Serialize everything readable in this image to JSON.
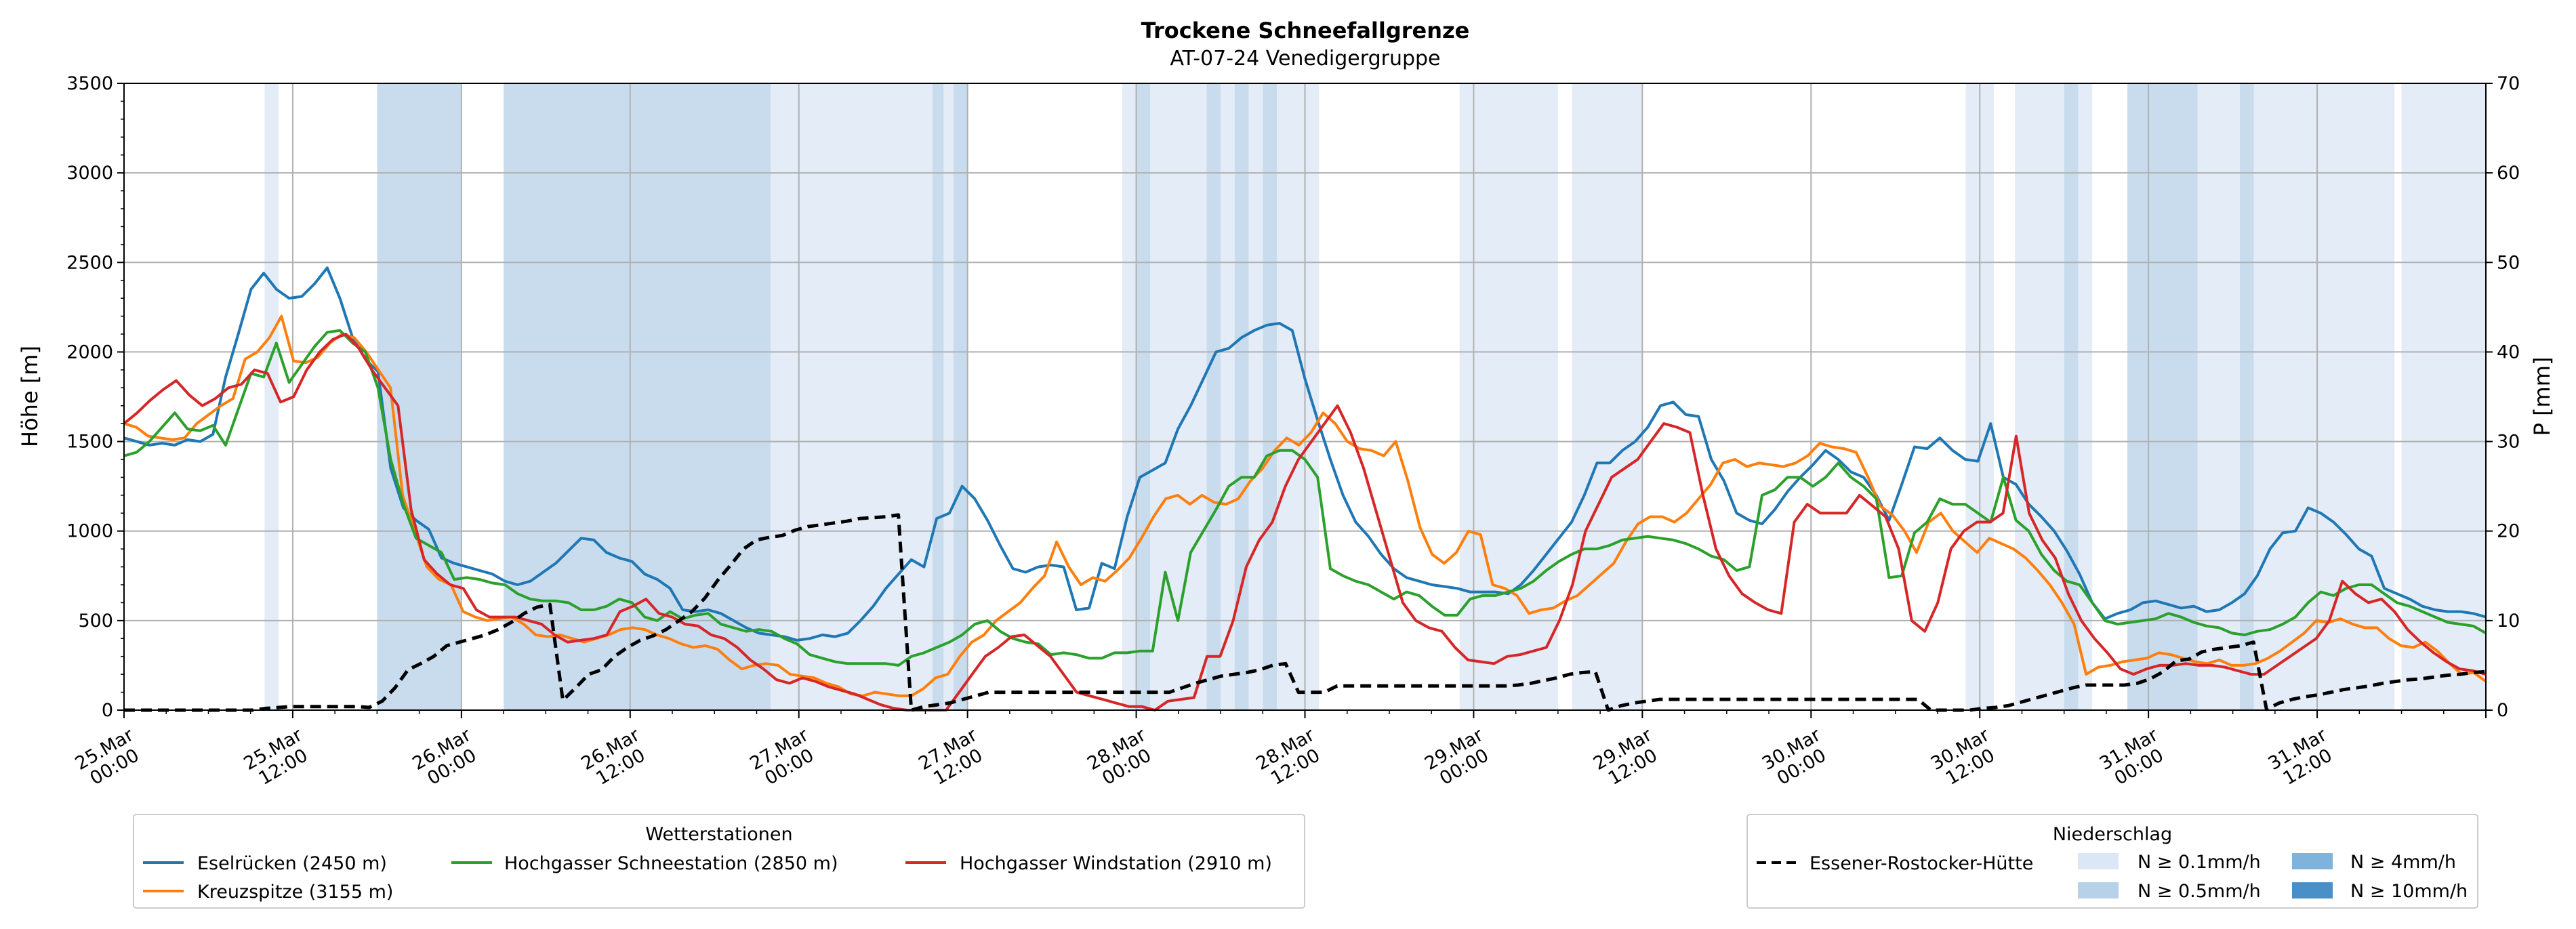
{
  "chart_data": {
    "type": "line",
    "title": "Trockene Schneefallgrenze",
    "subtitle": "AT-07-24 Venedigergruppe",
    "ylabel_left": "Höhe [m]",
    "ylabel_right": "P [mm]",
    "ylim_left": [
      0,
      3500
    ],
    "ylim_right": [
      0,
      70
    ],
    "yticks_left": [
      "0",
      "500",
      "1000",
      "1500",
      "2000",
      "2500",
      "3000",
      "3500"
    ],
    "yticks_right": [
      "0",
      "10",
      "20",
      "30",
      "40",
      "50",
      "60",
      "70"
    ],
    "x_range_hours": [
      0,
      168
    ],
    "x_unit_note": "hours after 25.Mar 00:00",
    "xticks": [
      {
        "t": 0,
        "line1": "25.Mar",
        "line2": "00:00"
      },
      {
        "t": 12,
        "line1": "25.Mar",
        "line2": "12:00"
      },
      {
        "t": 24,
        "line1": "26.Mar",
        "line2": "00:00"
      },
      {
        "t": 36,
        "line1": "26.Mar",
        "line2": "12:00"
      },
      {
        "t": 48,
        "line1": "27.Mar",
        "line2": "00:00"
      },
      {
        "t": 60,
        "line1": "27.Mar",
        "line2": "12:00"
      },
      {
        "t": 72,
        "line1": "28.Mar",
        "line2": "00:00"
      },
      {
        "t": 84,
        "line1": "28.Mar",
        "line2": "12:00"
      },
      {
        "t": 96,
        "line1": "29.Mar",
        "line2": "00:00"
      },
      {
        "t": 108,
        "line1": "29.Mar",
        "line2": "12:00"
      },
      {
        "t": 120,
        "line1": "30.Mar",
        "line2": "00:00"
      },
      {
        "t": 132,
        "line1": "30.Mar",
        "line2": "12:00"
      },
      {
        "t": 144,
        "line1": "31.Mar",
        "line2": "00:00"
      },
      {
        "t": 156,
        "line1": "31.Mar",
        "line2": "12:00"
      }
    ],
    "grid": true,
    "precip_bands": [
      {
        "start": 10,
        "end": 11,
        "level": 1
      },
      {
        "start": 18,
        "end": 24,
        "level": 2
      },
      {
        "start": 27,
        "end": 46,
        "level": 2
      },
      {
        "start": 46,
        "end": 48.5,
        "level": 1
      },
      {
        "start": 48.5,
        "end": 57.5,
        "level": 1
      },
      {
        "start": 57.5,
        "end": 58.3,
        "level": 2
      },
      {
        "start": 58.3,
        "end": 59,
        "level": 1
      },
      {
        "start": 59,
        "end": 60,
        "level": 2
      },
      {
        "start": 71,
        "end": 72,
        "level": 1
      },
      {
        "start": 72,
        "end": 73,
        "level": 2
      },
      {
        "start": 73,
        "end": 77,
        "level": 1
      },
      {
        "start": 77,
        "end": 78,
        "level": 2
      },
      {
        "start": 78,
        "end": 79,
        "level": 1
      },
      {
        "start": 79,
        "end": 80,
        "level": 2
      },
      {
        "start": 80,
        "end": 81,
        "level": 1
      },
      {
        "start": 81,
        "end": 82,
        "level": 2
      },
      {
        "start": 82,
        "end": 85,
        "level": 1
      },
      {
        "start": 95,
        "end": 102,
        "level": 1
      },
      {
        "start": 103,
        "end": 108,
        "level": 1
      },
      {
        "start": 131,
        "end": 133,
        "level": 1
      },
      {
        "start": 134.5,
        "end": 138,
        "level": 1
      },
      {
        "start": 138,
        "end": 139,
        "level": 2
      },
      {
        "start": 139,
        "end": 140,
        "level": 1
      },
      {
        "start": 142.5,
        "end": 147.5,
        "level": 2
      },
      {
        "start": 147.5,
        "end": 150.5,
        "level": 1
      },
      {
        "start": 150.5,
        "end": 151.5,
        "level": 2
      },
      {
        "start": 151.5,
        "end": 161.5,
        "level": 1
      },
      {
        "start": 162,
        "end": 168,
        "level": 1
      }
    ],
    "precip_colors": [
      "#ffffff",
      "#e3ecf7",
      "#c9dcee",
      "#9cc2e1",
      "#5b9bcc"
    ],
    "series": [
      {
        "name": "Eselrücken (2450 m)",
        "color": "#1f77b4",
        "axis": "left",
        "values": [
          1520,
          1500,
          1480,
          1490,
          1480,
          1510,
          1500,
          1540,
          1860,
          2100,
          2350,
          2440,
          2350,
          2300,
          2310,
          2380,
          2470,
          2300,
          2080,
          1960,
          1890,
          1350,
          1130,
          1060,
          1010,
          850,
          820,
          800,
          780,
          760,
          720,
          700,
          720,
          770,
          820,
          890,
          960,
          950,
          880,
          850,
          830,
          760,
          730,
          680,
          560,
          550,
          560,
          540,
          500,
          460,
          430,
          420,
          410,
          390,
          400,
          420,
          410,
          430,
          500,
          580,
          680,
          760,
          840,
          800,
          1070,
          1100,
          1250,
          1180,
          1060,
          920,
          790,
          770,
          800,
          810,
          800,
          560,
          570,
          820,
          790,
          1080,
          1300,
          1340,
          1380,
          1570,
          1700,
          1850,
          2000,
          2020,
          2080,
          2120,
          2150,
          2160,
          2120,
          1850,
          1620,
          1400,
          1200,
          1050,
          970,
          870,
          790,
          740,
          720,
          700,
          690,
          680,
          660,
          660,
          660,
          650,
          700,
          780,
          870,
          960,
          1050,
          1200,
          1380,
          1380,
          1450,
          1500,
          1580,
          1700,
          1720,
          1650,
          1640,
          1400,
          1280,
          1100,
          1060,
          1040,
          1120,
          1220,
          1300,
          1370,
          1450,
          1400,
          1330,
          1300,
          1200,
          1060,
          1260,
          1470,
          1460,
          1520,
          1450,
          1400,
          1390,
          1600,
          1300,
          1260,
          1150,
          1080,
          1000,
          890,
          760,
          600,
          510,
          540,
          560,
          600,
          610,
          590,
          570,
          580,
          550,
          560,
          600,
          650,
          750,
          900,
          990,
          1000,
          1130,
          1100,
          1050,
          980,
          900,
          860,
          680,
          650,
          620,
          580,
          560,
          550,
          550,
          540,
          520
        ]
      },
      {
        "name": "Kreuzspitze (3155 m)",
        "color": "#ff7f0e",
        "axis": "left",
        "values": [
          1600,
          1580,
          1530,
          1520,
          1510,
          1520,
          1600,
          1650,
          1700,
          1740,
          1960,
          2000,
          2080,
          2200,
          1950,
          1940,
          1970,
          2050,
          2100,
          2080,
          2000,
          1900,
          1800,
          1200,
          1000,
          800,
          730,
          700,
          550,
          520,
          500,
          510,
          520,
          480,
          420,
          410,
          420,
          400,
          380,
          400,
          420,
          450,
          460,
          450,
          420,
          400,
          370,
          350,
          360,
          340,
          280,
          230,
          250,
          260,
          250,
          200,
          190,
          180,
          150,
          130,
          90,
          80,
          100,
          90,
          80,
          80,
          120,
          180,
          200,
          300,
          380,
          420,
          500,
          550,
          600,
          680,
          750,
          940,
          800,
          700,
          740,
          720,
          780,
          850,
          960,
          1080,
          1180,
          1200,
          1150,
          1200,
          1160,
          1150,
          1180,
          1280,
          1350,
          1450,
          1520,
          1480,
          1550,
          1660,
          1600,
          1500,
          1460,
          1450,
          1420,
          1500,
          1280,
          1020,
          870,
          820,
          880,
          1000,
          980,
          700,
          680,
          640,
          540,
          560,
          570,
          610,
          640,
          700,
          760,
          820,
          940,
          1040,
          1080,
          1080,
          1050,
          1100,
          1180,
          1260,
          1380,
          1400,
          1360,
          1380,
          1370,
          1360,
          1380,
          1420,
          1490,
          1470,
          1460,
          1440,
          1300,
          1140,
          1090,
          1000,
          880,
          1050,
          1100,
          1000,
          940,
          880,
          960,
          930,
          900,
          850,
          780,
          700,
          600,
          480,
          200,
          240,
          250,
          270,
          280,
          290,
          320,
          310,
          290,
          270,
          260,
          280,
          250,
          250,
          260,
          290,
          330,
          380,
          430,
          500,
          490,
          510,
          480,
          460,
          460,
          400,
          360,
          350,
          380,
          330,
          260,
          200,
          210,
          160
        ]
      },
      {
        "name": "Hochgasser Schneestation (2850 m)",
        "color": "#2ca02c",
        "axis": "left",
        "values": [
          1420,
          1440,
          1500,
          1580,
          1660,
          1570,
          1560,
          1590,
          1480,
          1680,
          1880,
          1860,
          2050,
          1830,
          1930,
          2030,
          2110,
          2120,
          2050,
          2000,
          1800,
          1400,
          1150,
          960,
          920,
          880,
          730,
          740,
          730,
          710,
          700,
          650,
          620,
          610,
          610,
          600,
          560,
          560,
          580,
          620,
          600,
          520,
          500,
          550,
          510,
          530,
          540,
          480,
          460,
          440,
          450,
          440,
          400,
          370,
          310,
          290,
          270,
          260,
          260,
          260,
          260,
          250,
          300,
          320,
          350,
          380,
          420,
          480,
          500,
          440,
          400,
          380,
          370,
          310,
          320,
          310,
          290,
          290,
          320,
          320,
          330,
          330,
          770,
          500,
          880,
          1000,
          1120,
          1250,
          1300,
          1300,
          1420,
          1450,
          1450,
          1400,
          1300,
          790,
          750,
          720,
          700,
          660,
          620,
          660,
          640,
          580,
          530,
          530,
          620,
          640,
          640,
          660,
          680,
          720,
          780,
          830,
          870,
          900,
          900,
          920,
          950,
          960,
          970,
          960,
          950,
          930,
          900,
          860,
          840,
          780,
          800,
          1200,
          1230,
          1300,
          1300,
          1250,
          1300,
          1380,
          1300,
          1250,
          1180,
          740,
          750,
          990,
          1050,
          1180,
          1150,
          1150,
          1100,
          1050,
          1300,
          1060,
          1000,
          870,
          780,
          720,
          700,
          600,
          500,
          480,
          490,
          500,
          510,
          540,
          520,
          490,
          470,
          460,
          430,
          420,
          440,
          450,
          480,
          520,
          600,
          660,
          640,
          680,
          700,
          700,
          650,
          600,
          580,
          550,
          520,
          490,
          480,
          470,
          430
        ]
      },
      {
        "name": "Hochgasser Windstation (2910 m)",
        "color": "#d62728",
        "axis": "left",
        "values": [
          1600,
          1660,
          1730,
          1790,
          1840,
          1760,
          1700,
          1740,
          1800,
          1820,
          1900,
          1880,
          1720,
          1750,
          1900,
          2000,
          2070,
          2100,
          2020,
          1900,
          1800,
          1700,
          1120,
          840,
          760,
          700,
          680,
          560,
          520,
          520,
          520,
          500,
          480,
          420,
          380,
          390,
          400,
          420,
          550,
          580,
          620,
          540,
          520,
          480,
          470,
          420,
          400,
          350,
          280,
          230,
          170,
          150,
          180,
          160,
          130,
          110,
          90,
          60,
          30,
          10,
          0,
          0,
          0,
          0,
          100,
          200,
          300,
          350,
          410,
          420,
          360,
          300,
          200,
          100,
          80,
          60,
          40,
          20,
          20,
          0,
          50,
          60,
          70,
          300,
          300,
          500,
          800,
          950,
          1050,
          1250,
          1400,
          1500,
          1600,
          1700,
          1550,
          1350,
          1100,
          850,
          600,
          500,
          460,
          440,
          350,
          280,
          270,
          260,
          300,
          310,
          330,
          350,
          500,
          700,
          1000,
          1150,
          1300,
          1350,
          1400,
          1500,
          1600,
          1580,
          1550,
          1200,
          900,
          750,
          650,
          600,
          560,
          540,
          1050,
          1150,
          1100,
          1100,
          1100,
          1200,
          1140,
          1080,
          900,
          500,
          440,
          600,
          900,
          1000,
          1050,
          1050,
          1100,
          1530,
          1100,
          950,
          850,
          650,
          500,
          400,
          320,
          230,
          200,
          230,
          250,
          250,
          260,
          250,
          250,
          240,
          220,
          200,
          200,
          250,
          300,
          350,
          400,
          500,
          720,
          650,
          600,
          620,
          550,
          450,
          380,
          320,
          270,
          230,
          220,
          200
        ]
      },
      {
        "name": "Essener-Rostocker-Hütte",
        "color": "#000000",
        "axis": "right",
        "dashed": true,
        "values": [
          0,
          0,
          0,
          0,
          0,
          0,
          0,
          0,
          0,
          0,
          0,
          0.2,
          0.3,
          0.4,
          0.4,
          0.4,
          0.4,
          0.4,
          0.4,
          0.3,
          1,
          2.5,
          4.5,
          5.2,
          6,
          7.2,
          7.6,
          8,
          8.4,
          9,
          9.8,
          10.8,
          11.5,
          11.8,
          1.1,
          2.5,
          4,
          4.5,
          6,
          7,
          7.8,
          8.3,
          9,
          10,
          11,
          12.5,
          14.5,
          16.2,
          18,
          19,
          19.3,
          19.5,
          20.1,
          20.5,
          20.7,
          20.9,
          21.1,
          21.4,
          21.5,
          21.6,
          21.8,
          0,
          0.4,
          0.6,
          0.8,
          1.2,
          1.6,
          2,
          2,
          2,
          2,
          2,
          2,
          2,
          2,
          2,
          2,
          2,
          2,
          2,
          2,
          2,
          2.5,
          3,
          3.4,
          3.8,
          4,
          4.2,
          4.5,
          5,
          5.2,
          2,
          2,
          2,
          2.7,
          2.7,
          2.7,
          2.7,
          2.7,
          2.7,
          2.7,
          2.7,
          2.7,
          2.7,
          2.7,
          2.7,
          2.7,
          2.7,
          2.8,
          3,
          3.3,
          3.6,
          4,
          4.2,
          4.3,
          0,
          0.5,
          0.8,
          1,
          1.2,
          1.2,
          1.2,
          1.2,
          1.2,
          1.2,
          1.2,
          1.2,
          1.2,
          1.2,
          1.2,
          1.2,
          1.2,
          1.2,
          1.2,
          1.2,
          1.2,
          1.2,
          1.2,
          1.2,
          1.2,
          0,
          0,
          0,
          0,
          0.2,
          0.3,
          0.5,
          0.9,
          1.3,
          1.7,
          2.1,
          2.5,
          2.8,
          2.8,
          2.8,
          2.8,
          3,
          3.5,
          4.3,
          5.5,
          5.7,
          6.5,
          6.8,
          7,
          7.2,
          7.6,
          0.1,
          0.8,
          1.2,
          1.5,
          1.7,
          2,
          2.3,
          2.5,
          2.7,
          3,
          3.2,
          3.4,
          3.5,
          3.7,
          3.9,
          4,
          4.2,
          4.3
        ]
      }
    ],
    "legend_stations": {
      "title": "Wetterstationen",
      "items": [
        "Eselrücken (2450 m)",
        "Kreuzspitze (3155 m)",
        "Hochgasser Schneestation (2850 m)",
        "Hochgasser Windstation (2910 m)"
      ]
    },
    "legend_precip": {
      "title": "Niederschlag",
      "station": "Essener-Rostocker-Hütte",
      "levels": [
        "N ≥ 0.1mm/h",
        "N ≥ 0.5mm/h",
        "N ≥ 4mm/h",
        "N ≥ 10mm/h"
      ],
      "level_colors": [
        "#dbe7f4",
        "#b7d1e9",
        "#7fb3dc",
        "#4a90c8"
      ]
    }
  }
}
